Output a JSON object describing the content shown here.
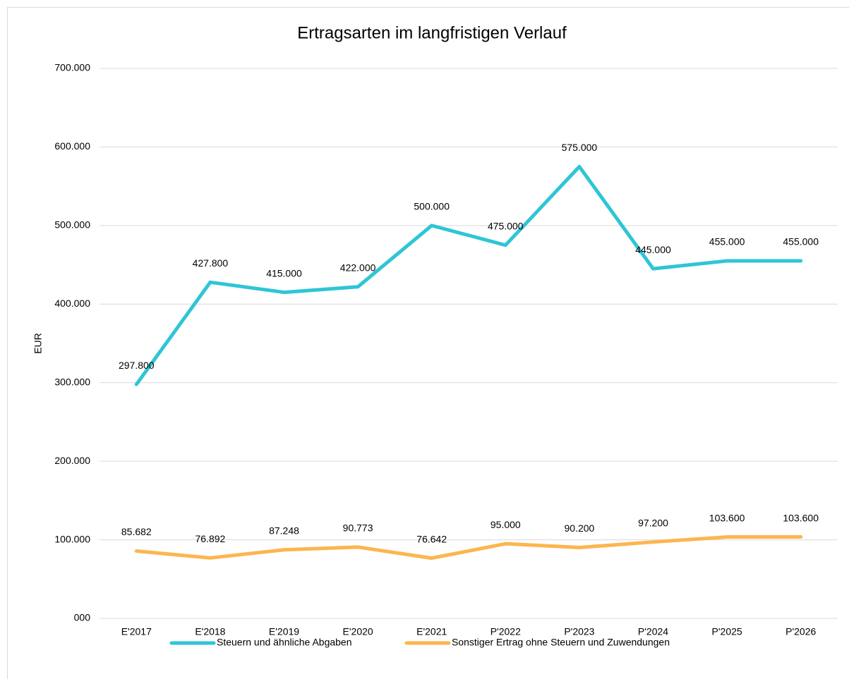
{
  "chart_data": {
    "type": "line",
    "title": "Ertragsarten im langfristigen Verlauf",
    "y_label": "EUR",
    "categories": [
      "E'2017",
      "E'2018",
      "E'2019",
      "E'2020",
      "E'2021",
      "P'2022",
      "P'2023",
      "P'2024",
      "P'2025",
      "P'2026"
    ],
    "series": [
      {
        "name": "Steuern und ähnliche Abgaben",
        "color": "#2ec5d6",
        "values": [
          297800,
          427800,
          415000,
          422000,
          500000,
          475000,
          575000,
          445000,
          455000,
          455000
        ],
        "value_labels": [
          "297.800",
          "427.800",
          "415.000",
          "422.000",
          "500.000",
          "475.000",
          "575.000",
          "445.000",
          "455.000",
          "455.000"
        ]
      },
      {
        "name": "Sonstiger Ertrag ohne Steuern und Zuwendungen",
        "color": "#fbb64e",
        "values": [
          85682,
          76892,
          87248,
          90773,
          76642,
          95000,
          90200,
          97200,
          103600,
          103600
        ],
        "value_labels": [
          "85.682",
          "76.892",
          "87.248",
          "90.773",
          "76.642",
          "95.000",
          "90.200",
          "97.200",
          "103.600",
          "103.600"
        ]
      }
    ],
    "ylim": [
      0,
      700000
    ],
    "yticks": [
      {
        "value": 0,
        "label": "000"
      },
      {
        "value": 100000,
        "label": "100.000"
      },
      {
        "value": 200000,
        "label": "200.000"
      },
      {
        "value": 300000,
        "label": "300.000"
      },
      {
        "value": 400000,
        "label": "400.000"
      },
      {
        "value": 500000,
        "label": "500.000"
      },
      {
        "value": 600000,
        "label": "600.000"
      },
      {
        "value": 700000,
        "label": "700.000"
      }
    ],
    "grid": true,
    "legend": "bottom"
  }
}
